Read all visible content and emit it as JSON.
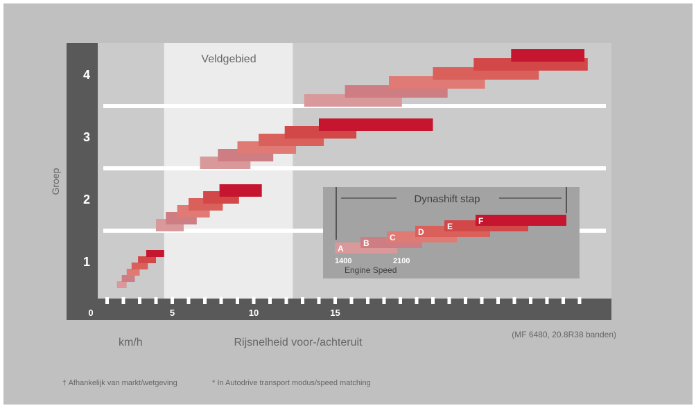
{
  "chart_data": {
    "type": "bar",
    "title": "",
    "ylabel": "Groep",
    "xlabel": "Rijsnelheid voor-/achteruit",
    "x_unit": "km/h",
    "x_ticks": [
      "0",
      "5",
      "10",
      "15"
    ],
    "x_tick_values": [
      0,
      5,
      10,
      15
    ],
    "xlim": [
      0,
      31
    ],
    "groups": [
      "1",
      "2",
      "3",
      "4"
    ],
    "field_zone_label": "Veldgebied",
    "field_zone_range": [
      4.5,
      12.4
    ],
    "note": "(MF 6480, 20.8R38 banden)",
    "gear_steps": [
      "A",
      "B",
      "C",
      "D",
      "E",
      "F"
    ],
    "series": [
      {
        "group": "1",
        "ranges": [
          [
            1.6,
            2.2
          ],
          [
            1.9,
            2.7
          ],
          [
            2.2,
            3.0
          ],
          [
            2.5,
            3.5
          ],
          [
            2.9,
            4.0
          ],
          [
            3.4,
            4.5
          ]
        ]
      },
      {
        "group": "2",
        "ranges": [
          [
            4.0,
            5.7
          ],
          [
            4.6,
            6.5
          ],
          [
            5.3,
            7.3
          ],
          [
            6.0,
            8.1
          ],
          [
            6.9,
            9.1
          ],
          [
            7.9,
            10.5
          ]
        ]
      },
      {
        "group": "3",
        "ranges": [
          [
            6.7,
            9.8
          ],
          [
            7.8,
            11.2
          ],
          [
            9.0,
            12.6
          ],
          [
            10.3,
            14.3
          ],
          [
            11.9,
            16.3
          ],
          [
            14.0,
            21.0
          ]
        ]
      },
      {
        "group": "4",
        "ranges": [
          [
            13.1,
            19.1
          ],
          [
            15.6,
            21.9
          ],
          [
            18.3,
            24.2
          ],
          [
            21.0,
            27.5
          ],
          [
            23.5,
            30.5
          ],
          [
            25.8,
            30.3
          ]
        ]
      }
    ],
    "colors": [
      "#d9999b",
      "#ce7e82",
      "#e07a74",
      "#d9605b",
      "#d24848",
      "#c6162f"
    ],
    "inset": {
      "title": "Dynashift stap",
      "labels": [
        "A",
        "B",
        "C",
        "D",
        "E",
        "F"
      ],
      "speed_labels": [
        "1400",
        "2100"
      ],
      "axis_label": "Engine Speed"
    }
  },
  "footnotes": {
    "left": "† Afhankelijk van markt/wetgeving",
    "right": "* In Autodrive transport modus/speed matching"
  }
}
